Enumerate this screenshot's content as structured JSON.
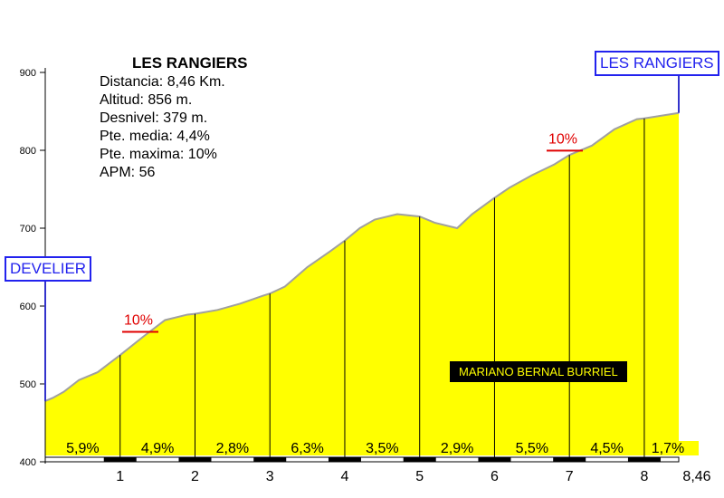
{
  "info": {
    "title": "LES RANGIERS",
    "lines": [
      "Distancia: 8,46 Km.",
      "Altitud: 856 m.",
      "Desnivel: 379 m.",
      "Pte. media: 4,4%",
      "Pte. maxima: 10%",
      "APM: 56"
    ]
  },
  "start_label": "DEVELIER",
  "end_label": "LES RANGIERS",
  "author": "MARIANO BERNAL BURRIEL",
  "max_grade_labels": [
    {
      "text": "10%",
      "km": 0.15
    },
    {
      "text": "10%",
      "km": 0.82
    }
  ],
  "chart_data": {
    "type": "area",
    "xlabel": "",
    "ylabel": "",
    "xlim": [
      0,
      8.46
    ],
    "ylim": [
      400,
      900
    ],
    "x_ticks": [
      "1",
      "2",
      "3",
      "4",
      "5",
      "6",
      "7",
      "8",
      "8,46"
    ],
    "x_tick_values": [
      1,
      2,
      3,
      4,
      5,
      6,
      7,
      8,
      8.46
    ],
    "y_ticks": [
      "400",
      "500",
      "600",
      "700",
      "800",
      "900"
    ],
    "y_tick_values": [
      400,
      500,
      600,
      700,
      800,
      900
    ],
    "profile": {
      "x": [
        0,
        0.1,
        0.25,
        0.45,
        0.7,
        1.0,
        1.3,
        1.6,
        1.9,
        2.0,
        2.3,
        2.6,
        2.9,
        3.0,
        3.2,
        3.5,
        3.8,
        4.0,
        4.2,
        4.4,
        4.7,
        5.0,
        5.2,
        5.5,
        5.7,
        6.0,
        6.2,
        6.5,
        6.8,
        7.0,
        7.3,
        7.6,
        7.9,
        8.0,
        8.2,
        8.46
      ],
      "y": [
        478,
        482,
        490,
        505,
        515,
        537,
        560,
        582,
        589,
        590,
        595,
        603,
        613,
        616,
        625,
        650,
        670,
        684,
        700,
        711,
        718,
        715,
        707,
        700,
        718,
        739,
        752,
        768,
        782,
        794,
        806,
        827,
        840,
        841,
        844,
        848
      ]
    },
    "segments": [
      {
        "from": 0,
        "to": 1,
        "grade": "5,9%"
      },
      {
        "from": 1,
        "to": 2,
        "grade": "4,9%"
      },
      {
        "from": 2,
        "to": 3,
        "grade": "2,8%"
      },
      {
        "from": 3,
        "to": 4,
        "grade": "6,3%"
      },
      {
        "from": 4,
        "to": 5,
        "grade": "3,5%"
      },
      {
        "from": 5,
        "to": 6,
        "grade": "2,9%"
      },
      {
        "from": 6,
        "to": 7,
        "grade": "5,5%"
      },
      {
        "from": 7,
        "to": 8,
        "grade": "4,5%"
      },
      {
        "from": 8,
        "to": 8.46,
        "grade": "1,7%"
      }
    ],
    "colors": {
      "fill": "#ffff00",
      "outline": "#a0a0a0",
      "label_box": "#2222ee",
      "grade_max": "#e00000"
    },
    "grid": false
  }
}
